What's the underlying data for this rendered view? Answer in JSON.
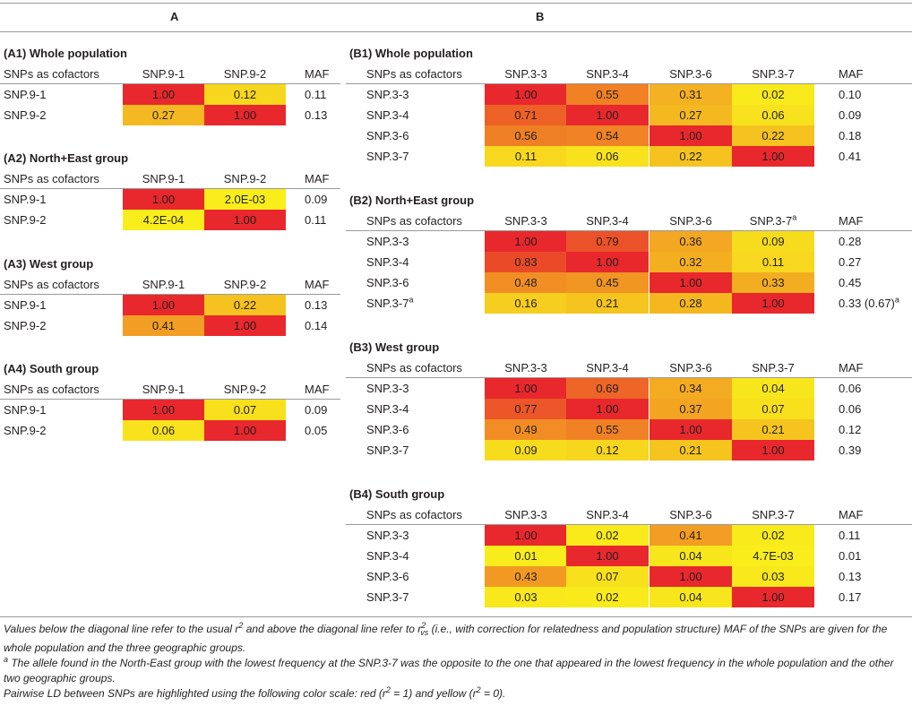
{
  "header": {
    "col_a": "A",
    "col_b": "B"
  },
  "color_scale": {
    "high": "#e8282c",
    "low": "#f9ee1c"
  },
  "row_header_label": "SNPs as cofactors",
  "maf_label": "MAF",
  "tables": {
    "a1": {
      "title": "(A1) Whole population",
      "cols": [
        "SNP.9-1",
        "SNP.9-2"
      ],
      "rows": [
        {
          "label": "SNP.9-1",
          "cells": [
            {
              "text": "1.00",
              "v": 1.0
            },
            {
              "text": "0.12",
              "v": 0.12
            }
          ],
          "maf": "0.11"
        },
        {
          "label": "SNP.9-2",
          "cells": [
            {
              "text": "0.27",
              "v": 0.27
            },
            {
              "text": "1.00",
              "v": 1.0
            }
          ],
          "maf": "0.13"
        }
      ]
    },
    "a2": {
      "title": "(A2) North+East group",
      "cols": [
        "SNP.9-1",
        "SNP.9-2"
      ],
      "rows": [
        {
          "label": "SNP.9-1",
          "cells": [
            {
              "text": "1.00",
              "v": 1.0
            },
            {
              "text": "2.0E-03",
              "v": 0.002
            }
          ],
          "maf": "0.09"
        },
        {
          "label": "SNP.9-2",
          "cells": [
            {
              "text": "4.2E-04",
              "v": 0.00042
            },
            {
              "text": "1.00",
              "v": 1.0
            }
          ],
          "maf": "0.11"
        }
      ]
    },
    "a3": {
      "title": "(A3) West group",
      "cols": [
        "SNP.9-1",
        "SNP.9-2"
      ],
      "rows": [
        {
          "label": "SNP.9-1",
          "cells": [
            {
              "text": "1.00",
              "v": 1.0
            },
            {
              "text": "0.22",
              "v": 0.22
            }
          ],
          "maf": "0.13"
        },
        {
          "label": "SNP.9-2",
          "cells": [
            {
              "text": "0.41",
              "v": 0.41
            },
            {
              "text": "1.00",
              "v": 1.0
            }
          ],
          "maf": "0.14"
        }
      ]
    },
    "a4": {
      "title": "(A4) South group",
      "cols": [
        "SNP.9-1",
        "SNP.9-2"
      ],
      "rows": [
        {
          "label": "SNP.9-1",
          "cells": [
            {
              "text": "1.00",
              "v": 1.0
            },
            {
              "text": "0.07",
              "v": 0.07
            }
          ],
          "maf": "0.09"
        },
        {
          "label": "SNP.9-2",
          "cells": [
            {
              "text": "0.06",
              "v": 0.06
            },
            {
              "text": "1.00",
              "v": 1.0
            }
          ],
          "maf": "0.05"
        }
      ]
    },
    "b1": {
      "title": "(B1) Whole population",
      "cols": [
        "SNP.3-3",
        "SNP.3-4",
        "SNP.3-6",
        "SNP.3-7"
      ],
      "rows": [
        {
          "label": "SNP.3-3",
          "cells": [
            {
              "text": "1.00",
              "v": 1.0
            },
            {
              "text": "0.55",
              "v": 0.55
            },
            {
              "text": "0.31",
              "v": 0.31
            },
            {
              "text": "0.02",
              "v": 0.02
            }
          ],
          "maf": "0.10"
        },
        {
          "label": "SNP.3-4",
          "cells": [
            {
              "text": "0.71",
              "v": 0.71
            },
            {
              "text": "1.00",
              "v": 1.0
            },
            {
              "text": "0.27",
              "v": 0.27
            },
            {
              "text": "0.06",
              "v": 0.06
            }
          ],
          "maf": "0.09"
        },
        {
          "label": "SNP.3-6",
          "cells": [
            {
              "text": "0.56",
              "v": 0.56
            },
            {
              "text": "0.54",
              "v": 0.54
            },
            {
              "text": "1.00",
              "v": 1.0
            },
            {
              "text": "0.22",
              "v": 0.22
            }
          ],
          "maf": "0.18"
        },
        {
          "label": "SNP.3-7",
          "cells": [
            {
              "text": "0.11",
              "v": 0.11
            },
            {
              "text": "0.06",
              "v": 0.06
            },
            {
              "text": "0.22",
              "v": 0.22
            },
            {
              "text": "1.00",
              "v": 1.0
            }
          ],
          "maf": "0.41"
        }
      ]
    },
    "b2": {
      "title": "(B2) North+East group",
      "cols": [
        "SNP.3-3",
        "SNP.3-4",
        "SNP.3-6",
        "SNP.3-7"
      ],
      "col_sup": [
        "",
        "",
        "",
        "a"
      ],
      "rows": [
        {
          "label": "SNP.3-3",
          "cells": [
            {
              "text": "1.00",
              "v": 1.0
            },
            {
              "text": "0.79",
              "v": 0.79
            },
            {
              "text": "0.36",
              "v": 0.36
            },
            {
              "text": "0.09",
              "v": 0.09
            }
          ],
          "maf": "0.28"
        },
        {
          "label": "SNP.3-4",
          "cells": [
            {
              "text": "0.83",
              "v": 0.83
            },
            {
              "text": "1.00",
              "v": 1.0
            },
            {
              "text": "0.32",
              "v": 0.32
            },
            {
              "text": "0.11",
              "v": 0.11
            }
          ],
          "maf": "0.27"
        },
        {
          "label": "SNP.3-6",
          "cells": [
            {
              "text": "0.48",
              "v": 0.48
            },
            {
              "text": "0.45",
              "v": 0.45
            },
            {
              "text": "1.00",
              "v": 1.0
            },
            {
              "text": "0.33",
              "v": 0.33
            }
          ],
          "maf": "0.45"
        },
        {
          "label": "SNP.3-7",
          "label_sup": "a",
          "cells": [
            {
              "text": "0.16",
              "v": 0.16
            },
            {
              "text": "0.21",
              "v": 0.21
            },
            {
              "text": "0.28",
              "v": 0.28
            },
            {
              "text": "1.00",
              "v": 1.0
            }
          ],
          "maf": "0.33 (0.67)",
          "maf_sup": "a"
        }
      ]
    },
    "b3": {
      "title": "(B3) West group",
      "cols": [
        "SNP.3-3",
        "SNP.3-4",
        "SNP.3-6",
        "SNP.3-7"
      ],
      "rows": [
        {
          "label": "SNP.3-3",
          "cells": [
            {
              "text": "1.00",
              "v": 1.0
            },
            {
              "text": "0.69",
              "v": 0.69
            },
            {
              "text": "0.34",
              "v": 0.34
            },
            {
              "text": "0.04",
              "v": 0.04
            }
          ],
          "maf": "0.06"
        },
        {
          "label": "SNP.3-4",
          "cells": [
            {
              "text": "0.77",
              "v": 0.77
            },
            {
              "text": "1.00",
              "v": 1.0
            },
            {
              "text": "0.37",
              "v": 0.37
            },
            {
              "text": "0.07",
              "v": 0.07
            }
          ],
          "maf": "0.06"
        },
        {
          "label": "SNP.3-6",
          "cells": [
            {
              "text": "0.49",
              "v": 0.49
            },
            {
              "text": "0.55",
              "v": 0.55
            },
            {
              "text": "1.00",
              "v": 1.0
            },
            {
              "text": "0.21",
              "v": 0.21
            }
          ],
          "maf": "0.12"
        },
        {
          "label": "SNP.3-7",
          "cells": [
            {
              "text": "0.09",
              "v": 0.09
            },
            {
              "text": "0.12",
              "v": 0.12
            },
            {
              "text": "0.21",
              "v": 0.21
            },
            {
              "text": "1.00",
              "v": 1.0
            }
          ],
          "maf": "0.39"
        }
      ]
    },
    "b4": {
      "title": "(B4) South group",
      "cols": [
        "SNP.3-3",
        "SNP.3-4",
        "SNP.3-6",
        "SNP.3-7"
      ],
      "rows": [
        {
          "label": "SNP.3-3",
          "cells": [
            {
              "text": "1.00",
              "v": 1.0
            },
            {
              "text": "0.02",
              "v": 0.02
            },
            {
              "text": "0.41",
              "v": 0.41
            },
            {
              "text": "0.02",
              "v": 0.02
            }
          ],
          "maf": "0.11"
        },
        {
          "label": "SNP.3-4",
          "cells": [
            {
              "text": "0.01",
              "v": 0.01
            },
            {
              "text": "1.00",
              "v": 1.0
            },
            {
              "text": "0.04",
              "v": 0.04
            },
            {
              "text": "4.7E-03",
              "v": 0.0047
            }
          ],
          "maf": "0.01"
        },
        {
          "label": "SNP.3-6",
          "cells": [
            {
              "text": "0.43",
              "v": 0.43
            },
            {
              "text": "0.07",
              "v": 0.07
            },
            {
              "text": "1.00",
              "v": 1.0
            },
            {
              "text": "0.03",
              "v": 0.03
            }
          ],
          "maf": "0.13"
        },
        {
          "label": "SNP.3-7",
          "cells": [
            {
              "text": "0.03",
              "v": 0.03
            },
            {
              "text": "0.02",
              "v": 0.02
            },
            {
              "text": "0.04",
              "v": 0.04
            },
            {
              "text": "1.00",
              "v": 1.0
            }
          ],
          "maf": "0.17"
        }
      ]
    }
  },
  "footnotes": {
    "note1_a": "Values below the diagonal line refer to the usual r",
    "note1_sup1": "2",
    "note1_b": " and above the diagonal line refer to r",
    "note1_sup2": "2",
    "note1_sub2": "vs",
    "note1_c": " (i.e., with correction for relatedness and population structure) MAF of the SNPs are given for the whole population and the three geographic groups.",
    "note2_marker": "a",
    "note2": " The allele found in the North-East group with the lowest frequency at the SNP.3-7 was the opposite to the one that appeared in the lowest frequency in the whole population and the other two geographic groups.",
    "note3_a": "Pairwise LD between SNPs are highlighted using the following color scale: red (r",
    "note3_sup1": "2",
    "note3_b": " = 1) and yellow (r",
    "note3_sup2": "2",
    "note3_c": " = 0)."
  }
}
